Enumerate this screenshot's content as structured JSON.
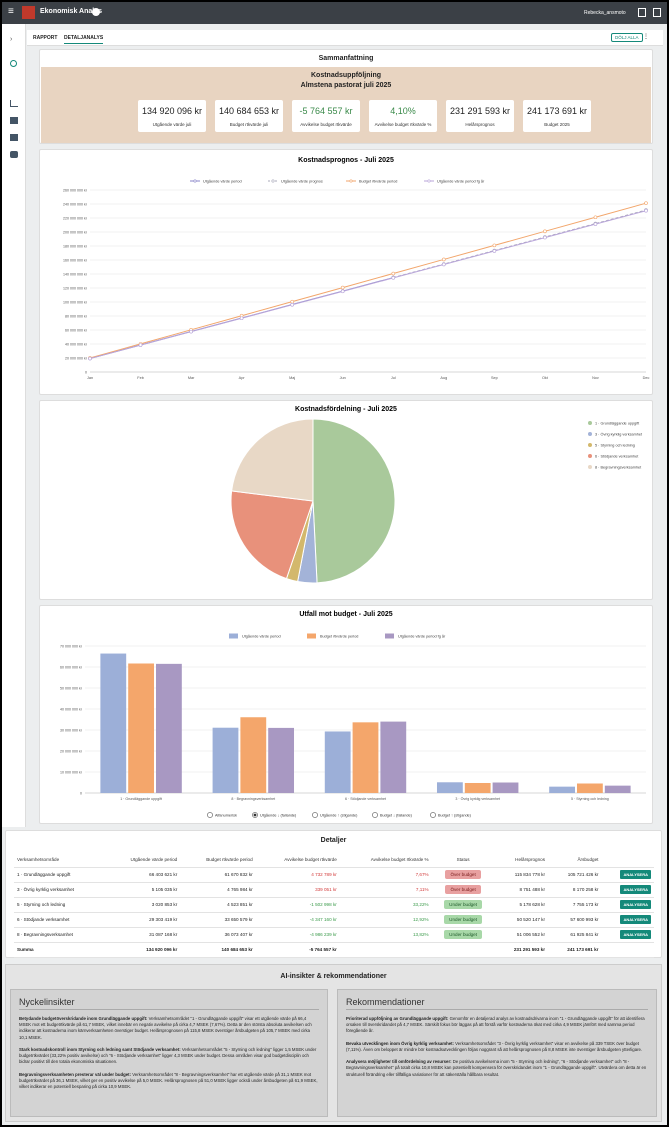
{
  "header": {
    "app": "Ekonomisk Analys",
    "user": "Rebecka_ansmoto"
  },
  "tabs": [
    "RAPPORT",
    "DETALJANALYS"
  ],
  "hide_all": "DÖLJ ALLA",
  "summary": {
    "title": "Sammanfattning",
    "heading": "Kostnadsuppföljning",
    "subheading": "Almstena pastorat juli 2025",
    "cards": [
      {
        "value": "134 920 096 kr",
        "label": "Utgående värde juli"
      },
      {
        "value": "140 684 653 kr",
        "label": "Budget rtkvärde juli"
      },
      {
        "value": "-5 764 557 kr",
        "label": "Avvikelse budget rtkvärde",
        "color": "#3a8a4a"
      },
      {
        "value": "4,10%",
        "label": "Avvikelse budget rtkvärde %",
        "color": "#3a8a4a"
      },
      {
        "value": "231 291 593 kr",
        "label": "Helårsprognos"
      },
      {
        "value": "241 173 691 kr",
        "label": "Budget 2025"
      }
    ]
  },
  "chart_data": [
    {
      "type": "line",
      "title": "Kostnadsprognos - Juli 2025",
      "categories": [
        "Jan",
        "Feb",
        "Mar",
        "Apr",
        "Maj",
        "Jun",
        "Jul",
        "Aug",
        "Sep",
        "Okt",
        "Nov",
        "Dec"
      ],
      "ylim": [
        0,
        260000000
      ],
      "yticks": [
        0,
        {
          "value": 20000000,
          "label": "20 000 000 kr"
        },
        {
          "value": 40000000,
          "label": "40 000 000 kr"
        },
        {
          "value": 60000000,
          "label": "60 000 000 kr"
        },
        {
          "value": 80000000,
          "label": "80 000 000 kr"
        },
        {
          "value": 100000000,
          "label": "100 000 000 kr"
        },
        {
          "value": 120000000,
          "label": "120 000 000 kr"
        },
        {
          "value": 140000000,
          "label": "140 000 000 kr"
        },
        {
          "value": 160000000,
          "label": "160 000 000 kr"
        },
        {
          "value": 180000000,
          "label": "180 000 000 kr"
        },
        {
          "value": 200000000,
          "label": "200 000 000 kr"
        },
        {
          "value": 220000000,
          "label": "220 000 000 kr"
        },
        {
          "value": 240000000,
          "label": "240 000 000 kr"
        },
        {
          "value": 260000000,
          "label": "260 000 000 kr"
        }
      ],
      "grid": true,
      "series": [
        {
          "name": "Utgående värde period",
          "color": "#8a86c8",
          "values": [
            19274299,
            38548599,
            57822898,
            77097198,
            96371497,
            115645797,
            134920096,
            null,
            null,
            null,
            null,
            null
          ]
        },
        {
          "name": "Utgående värde prognos",
          "color": "#a8a8b8",
          "dash": true,
          "values": [
            null,
            null,
            null,
            null,
            null,
            null,
            134920096,
            154194395,
            173468694,
            192742994,
            212017293,
            231291593
          ]
        },
        {
          "name": "Budget rtkvärde period",
          "color": "#f2a66c",
          "values": [
            20097808,
            40195615,
            60293423,
            80391230,
            100489038,
            120586845,
            140684653,
            160782461,
            180880268,
            200978076,
            221075883,
            241173691
          ]
        },
        {
          "name": "Utgående värde period fg år",
          "color": "#b9a6da",
          "values": [
            19200000,
            38400000,
            57600000,
            76800000,
            96000000,
            115200000,
            134400000,
            153600000,
            172800000,
            192000000,
            211200000,
            230400000
          ]
        }
      ]
    },
    {
      "type": "pie",
      "title": "Kostnadsfördelning - Juli 2025",
      "categories": [
        "1 · Grundläggande uppgift",
        "3 · Övrig kyrklig verksamhet",
        "5 · Styrning och ledning",
        "6 · Stödjande verksamhet",
        "8 · Begravningsverksamhet"
      ],
      "values": [
        66403621,
        5105035,
        3020853,
        29303419,
        31087168
      ],
      "colors": [
        "#a9c99b",
        "#a3b3d8",
        "#d3b86c",
        "#e8917b",
        "#e8d8c6"
      ]
    },
    {
      "type": "bar",
      "title": "Utfall mot budget - Juli 2025",
      "categories": [
        "1 · Grundläggande uppgift",
        "8 · Begravningsverksamhet",
        "6 · Stödjande verksamhet",
        "3 · Övrig kyrklig verksamhet",
        "5 · Styrning och ledning"
      ],
      "ylim": [
        0,
        70000000
      ],
      "yticks": [
        0,
        {
          "value": 10000000,
          "label": "10 000 000 kr"
        },
        {
          "value": 20000000,
          "label": "20 000 000 kr"
        },
        {
          "value": 30000000,
          "label": "30 000 000 kr"
        },
        {
          "value": 40000000,
          "label": "40 000 000 kr"
        },
        {
          "value": 50000000,
          "label": "50 000 000 kr"
        },
        {
          "value": 60000000,
          "label": "60 000 000 kr"
        },
        {
          "value": 70000000,
          "label": "70 000 000 kr"
        }
      ],
      "grid": true,
      "series": [
        {
          "name": "Utgående värde period",
          "color": "#9cafd8",
          "values": [
            66403621,
            31087168,
            29303419,
            5105035,
            3020853
          ]
        },
        {
          "name": "Budget rtkvärde period",
          "color": "#f4a66b",
          "values": [
            61670832,
            36073407,
            33650579,
            4765984,
            4523851
          ]
        },
        {
          "name": "Utgående värde period fg år",
          "color": "#a898c2",
          "values": [
            61500000,
            31000000,
            34000000,
            5000000,
            3500000
          ]
        }
      ],
      "sort_options": [
        "Alfanumerisk",
        "Utgående ↓ (fallande)",
        "Utgående ↑ (stigande)",
        "Budget ↓ (fallande)",
        "Budget ↑ (stigande)"
      ],
      "sort_selected": 1
    }
  ],
  "details": {
    "title": "Detaljer",
    "columns": [
      "Verksamhetsområde",
      "Utgående värde period",
      "Budget rtkvärde period",
      "Avvikelse budget rtkvärde",
      "Avvikelse budget rtkvärde %",
      "Status",
      "Helårsprognos",
      "Årsbudget"
    ],
    "action": "ANALYSERA",
    "rows": [
      {
        "cells": [
          "1 · Grundläggande uppgift",
          "66 403 621 kr",
          "61 670 832 kr",
          "4 732 789 kr",
          "7,67%",
          "Över budget",
          "115 834 778 kr",
          "105 721 426 kr"
        ],
        "tone": "over"
      },
      {
        "cells": [
          "3 · Övrig kyrklig verksamhet",
          "5 105 035 kr",
          "4 765 984 kr",
          "339 051 kr",
          "7,11%",
          "Över budget",
          "8 751 488 kr",
          "8 170 258 kr"
        ],
        "tone": "over"
      },
      {
        "cells": [
          "5 · Styrning och ledning",
          "3 020 853 kr",
          "4 523 851 kr",
          "-1 502 998 kr",
          "33,22%",
          "Under budget",
          "5 178 628 kr",
          "7 755 173 kr"
        ],
        "tone": "under"
      },
      {
        "cells": [
          "6 · Stödjande verksamhet",
          "29 303 419 kr",
          "33 650 579 kr",
          "-4 347 160 kr",
          "12,92%",
          "Under budget",
          "50 520 147 kr",
          "57 600 993 kr"
        ],
        "tone": "under"
      },
      {
        "cells": [
          "8 · Begravningsverksamhet",
          "31 087 168 kr",
          "36 073 407 kr",
          "-4 986 239 kr",
          "13,82%",
          "Under budget",
          "51 006 552 kr",
          "61 925 841 kr"
        ],
        "tone": "under"
      }
    ],
    "total": {
      "label": "Summa",
      "cells": {
        "1": "134 920 096 kr",
        "2": "140 684 653 kr",
        "3": "-5 764 557 kr",
        "6": "231 291 593 kr",
        "7": "241 173 691 kr"
      }
    }
  },
  "ai": {
    "title": "AI-insikter & rekommendationer",
    "insights": {
      "title": "Nyckelinsikter",
      "items": [
        {
          "lead": "Betydande budgetöverskridande inom Grundläggande uppgift:",
          "text": "Verksamhetsområdet \"1 - Grundläggande uppgift\" visar ett utgående värde på 66,4 MSEK mot ett budgetrtkvärde på 61,7 MSEK, vilket innebär en negativ avvikelse på cirka 4,7 MSEK (7,67%). Detta är den största absoluta avvikelsen och indikerar att kostnaderna inom kärnverksamheten överstiger budget. Helårsprognosen på 115,8 MSEK överstiger årsbudgeten på 105,7 MSEK med cirka 10,1 MSEK."
        },
        {
          "lead": "Stark kostnadskontroll inom Styrning och ledning samt Stödjande verksamhet:",
          "text": "Verksamhetsområdet \"5 - Styrning och ledning\" ligger 1,5 MSEK under budgetrtkvärdet (33,22% positiv avvikelse) och \"6 - Stödjande verksamhet\" ligger 4,3 MSEK under budget. Dessa områden visar god budgetdisciplin och bidrar positivt till den totala ekonomiska situationen."
        },
        {
          "lead": "Begravningsverksamheten presterar väl under budget:",
          "text": "Verksamhetsområdet \"8 - Begravningsverksamhet\" har ett utgående värde på 31,1 MSEK mot budgetrtkvärdet på 36,1 MSEK, vilket ger en positiv avvikelse på 5,0 MSEK. Helårsprognosen på 51,0 MSEK ligger också under årsbudgeten på 61,9 MSEK, vilket indikerar en potentiell besparing på cirka 10,9 MSEK."
        }
      ]
    },
    "recommendations": {
      "title": "Rekommendationer",
      "items": [
        {
          "lead": "Prioriterad uppföljning av Grundläggande uppgift:",
          "text": "Genomför en detaljerad analys av kostnadsdrivarna inom \"1 - Grundläggande uppgift\" för att identifiera orsaken till överskridandet på 4,7 MSEK. Särskilt fokus bör läggas på att förstå varför kostnaderna ökat med cirka 4,9 MSEK jämfört med samma period föregående år."
        },
        {
          "lead": "Bevaka utvecklingen inom Övrig kyrklig verksamhet:",
          "text": "Verksamhetsområdet \"3 - Övrig kyrklig verksamhet\" visar en avvikelse på 339 TSEK över budget (7,11%). Även om beloppet är mindre bör kostnadsutvecklingen följas noggrant så att helårsprognosen på 8,8 MSEK inte överstiger årsbudgeten ytterligare."
        },
        {
          "lead": "Analysera möjligheter till omfördelning av resurser:",
          "text": "De positiva avvikelserna inom \"5 - Styrning och ledning\", \"6 - Stödjande verksamhet\" och \"8 - Begravningsverksamhet\" på totalt cirka 10,8 MSEK kan potentiellt kompensera för överskridandet inom \"1 - Grundläggande uppgift\". Utvärdera om detta är en strukturell förändring eller tillfälliga variationer för att säkerställa hållbara resultat."
        }
      ]
    }
  }
}
